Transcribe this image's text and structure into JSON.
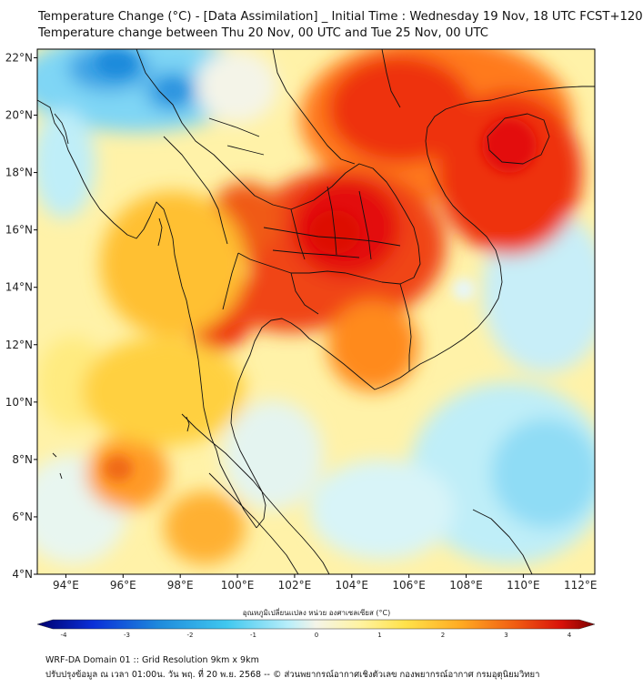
{
  "titles": {
    "line1": "Temperature Change (°C) - [Data Assimilation] _ Initial Time : Wednesday 19 Nov, 18 UTC FCST+120",
    "line2": "Temperature change between Thu 20 Nov, 00 UTC and Tue 25 Nov, 00 UTC"
  },
  "map": {
    "lat_ticks": [
      "22°N",
      "20°N",
      "18°N",
      "16°N",
      "14°N",
      "12°N",
      "10°N",
      "8°N",
      "6°N",
      "4°N"
    ],
    "lon_ticks": [
      "94°E",
      "96°E",
      "98°E",
      "100°E",
      "102°E",
      "104°E",
      "106°E",
      "108°E",
      "110°E",
      "112°E"
    ],
    "lat_range": [
      4,
      22.3
    ],
    "lon_range": [
      93,
      112.5
    ]
  },
  "colorbar": {
    "label": "อุณหภูมิเปลี่ยนแปลง หน่วย องศาเซลเซียส (°C)",
    "ticks": [
      "-4",
      "-3",
      "-2",
      "-1",
      "0",
      "1",
      "2",
      "3",
      "4"
    ],
    "range": [
      -4,
      4
    ]
  },
  "footer": {
    "line1": "WRF-DA Domain 01 :: Grid Resolution 9km x 9km",
    "line2": "ปรับปรุงข้อมูล ณ เวลา 01:00น. วัน พฤ. ที่ 20 พ.ย. 2568 -- © ส่วนพยากรณ์อากาศเชิงตัวเลข กองพยากรณ์อากาศ กรมอุตุนิยมวิทยา"
  },
  "colors": {
    "cold": "#1f8bdc",
    "cool": "#7fd6f5",
    "neutral": "#f4f4e8",
    "mild": "#ffe766",
    "warm": "#ffaa22",
    "hot": "#ee3311",
    "hottest": "#e30f07"
  }
}
